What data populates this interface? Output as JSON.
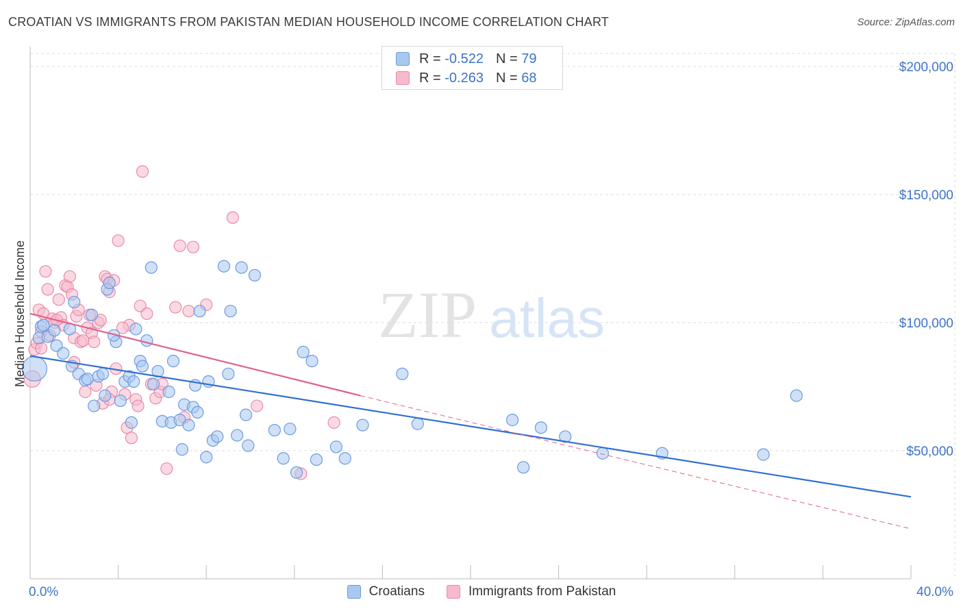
{
  "title": "CROATIAN VS IMMIGRANTS FROM PAKISTAN MEDIAN HOUSEHOLD INCOME CORRELATION CHART",
  "source": "Source: ZipAtlas.com",
  "watermark": {
    "zip": "ZIP",
    "atlas": "atlas"
  },
  "legend_top": [
    {
      "r_label": "R =",
      "r_value": "-0.522",
      "n_label": "N =",
      "n_value": "79"
    },
    {
      "r_label": "R =",
      "r_value": "-0.263",
      "n_label": "N =",
      "n_value": "68"
    }
  ],
  "legend_bottom": [
    "Croatians",
    "Immigrants from Pakistan"
  ],
  "colors": {
    "blue_fill": "#a9c8f0",
    "blue_stroke": "#6a9ae0",
    "blue_line": "#2f6fd1",
    "pink_fill": "#f7b9cc",
    "pink_stroke": "#e98aa8",
    "pink_line": "#e0608a",
    "grid": "#dcdcdc",
    "axis_text": "#3b73c9"
  },
  "chart_data": {
    "type": "scatter",
    "title": "CROATIAN VS IMMIGRANTS FROM PAKISTAN MEDIAN HOUSEHOLD INCOME CORRELATION CHART",
    "xlabel": "",
    "ylabel": "Median Household Income",
    "xlim": [
      0,
      40
    ],
    "ylim": [
      0,
      210000
    ],
    "x_tick_labels": [
      "0.0%",
      "40.0%"
    ],
    "y_ticks": [
      50000,
      100000,
      150000,
      200000
    ],
    "y_tick_labels": [
      "$50,000",
      "$100,000",
      "$150,000",
      "$200,000"
    ],
    "grid": true,
    "series": [
      {
        "name": "Croatians",
        "r": -0.522,
        "n": 79,
        "trend": {
          "x0": 0,
          "y0": 87000,
          "x1": 40,
          "y1": 32000
        },
        "points": [
          [
            0.2,
            82000
          ],
          [
            0.4,
            94000
          ],
          [
            0.5,
            98500
          ],
          [
            0.6,
            99000
          ],
          [
            0.8,
            94500
          ],
          [
            1.2,
            91000
          ],
          [
            1.5,
            88000
          ],
          [
            1.8,
            97500
          ],
          [
            1.9,
            83000
          ],
          [
            2.2,
            80000
          ],
          [
            2.5,
            77500
          ],
          [
            2.6,
            78000
          ],
          [
            2.9,
            67500
          ],
          [
            2.8,
            103000
          ],
          [
            3.1,
            79000
          ],
          [
            3.3,
            80000
          ],
          [
            3.5,
            113000
          ],
          [
            3.6,
            115500
          ],
          [
            3.4,
            71500
          ],
          [
            3.9,
            92500
          ],
          [
            3.8,
            95000
          ],
          [
            4.1,
            69500
          ],
          [
            4.3,
            77000
          ],
          [
            4.5,
            79000
          ],
          [
            4.6,
            61000
          ],
          [
            4.7,
            77000
          ],
          [
            4.8,
            97500
          ],
          [
            5.0,
            85000
          ],
          [
            5.1,
            83000
          ],
          [
            5.3,
            93000
          ],
          [
            5.5,
            121500
          ],
          [
            5.6,
            76000
          ],
          [
            5.8,
            81000
          ],
          [
            6.0,
            61500
          ],
          [
            6.3,
            73000
          ],
          [
            6.4,
            61000
          ],
          [
            6.5,
            85000
          ],
          [
            6.8,
            62000
          ],
          [
            6.9,
            50500
          ],
          [
            7.0,
            68000
          ],
          [
            7.2,
            60000
          ],
          [
            7.4,
            67000
          ],
          [
            7.5,
            75500
          ],
          [
            7.6,
            65000
          ],
          [
            7.7,
            104500
          ],
          [
            8.0,
            47500
          ],
          [
            8.1,
            77000
          ],
          [
            8.3,
            54000
          ],
          [
            8.5,
            55500
          ],
          [
            9.0,
            80000
          ],
          [
            9.1,
            104500
          ],
          [
            9.4,
            56000
          ],
          [
            9.6,
            121500
          ],
          [
            9.8,
            64000
          ],
          [
            9.9,
            52000
          ],
          [
            10.2,
            118500
          ],
          [
            11.1,
            58000
          ],
          [
            11.5,
            47000
          ],
          [
            11.8,
            58500
          ],
          [
            12.1,
            41500
          ],
          [
            12.4,
            88500
          ],
          [
            12.8,
            85000
          ],
          [
            13.0,
            46500
          ],
          [
            13.9,
            51500
          ],
          [
            14.3,
            47000
          ],
          [
            15.1,
            60000
          ],
          [
            16.9,
            80000
          ],
          [
            17.6,
            60500
          ],
          [
            21.9,
            62000
          ],
          [
            22.4,
            43500
          ],
          [
            23.2,
            59000
          ],
          [
            24.3,
            55500
          ],
          [
            26.0,
            49000
          ],
          [
            28.7,
            49000
          ],
          [
            33.3,
            48500
          ],
          [
            34.8,
            71500
          ],
          [
            8.8,
            122000
          ],
          [
            1.1,
            97000
          ],
          [
            2.0,
            108000
          ]
        ]
      },
      {
        "name": "Immigrants from Pakistan",
        "r": -0.263,
        "n": 68,
        "trend": {
          "x0": 0,
          "y0": 103500,
          "x1": 15,
          "y1": 71500,
          "dash_x1": 40,
          "dash_y1": 19500
        },
        "points": [
          [
            0.1,
            78000
          ],
          [
            0.2,
            89500
          ],
          [
            0.3,
            92000
          ],
          [
            0.4,
            105000
          ],
          [
            0.5,
            90000
          ],
          [
            0.6,
            103500
          ],
          [
            0.7,
            120000
          ],
          [
            0.8,
            113000
          ],
          [
            0.9,
            95000
          ],
          [
            1.0,
            101500
          ],
          [
            1.1,
            100000
          ],
          [
            1.3,
            109000
          ],
          [
            1.4,
            102000
          ],
          [
            1.5,
            99000
          ],
          [
            1.6,
            114500
          ],
          [
            1.7,
            114000
          ],
          [
            1.8,
            118000
          ],
          [
            1.9,
            111000
          ],
          [
            2.0,
            94000
          ],
          [
            2.1,
            102500
          ],
          [
            2.2,
            105000
          ],
          [
            2.3,
            92500
          ],
          [
            2.4,
            93000
          ],
          [
            2.5,
            73000
          ],
          [
            2.6,
            98000
          ],
          [
            2.7,
            103000
          ],
          [
            2.8,
            96000
          ],
          [
            2.9,
            92500
          ],
          [
            3.0,
            75500
          ],
          [
            3.1,
            100000
          ],
          [
            3.2,
            101000
          ],
          [
            3.3,
            68500
          ],
          [
            3.4,
            118000
          ],
          [
            3.5,
            117000
          ],
          [
            3.6,
            112000
          ],
          [
            3.7,
            73000
          ],
          [
            3.8,
            116500
          ],
          [
            3.9,
            82000
          ],
          [
            4.0,
            132000
          ],
          [
            4.3,
            72000
          ],
          [
            4.4,
            59000
          ],
          [
            4.5,
            99000
          ],
          [
            4.6,
            55000
          ],
          [
            4.8,
            70000
          ],
          [
            4.9,
            67500
          ],
          [
            5.0,
            106500
          ],
          [
            5.1,
            159000
          ],
          [
            5.3,
            103500
          ],
          [
            5.5,
            76000
          ],
          [
            5.7,
            70500
          ],
          [
            5.9,
            73000
          ],
          [
            6.0,
            76000
          ],
          [
            6.2,
            43000
          ],
          [
            6.6,
            106000
          ],
          [
            6.8,
            130000
          ],
          [
            7.0,
            63000
          ],
          [
            7.2,
            104500
          ],
          [
            7.4,
            129500
          ],
          [
            8.0,
            107000
          ],
          [
            9.2,
            141000
          ],
          [
            10.3,
            67500
          ],
          [
            12.3,
            41000
          ],
          [
            13.8,
            61000
          ],
          [
            0.5,
            96500
          ],
          [
            1.2,
            101000
          ],
          [
            2.0,
            84500
          ],
          [
            3.6,
            70000
          ],
          [
            4.2,
            98000
          ]
        ]
      }
    ]
  }
}
